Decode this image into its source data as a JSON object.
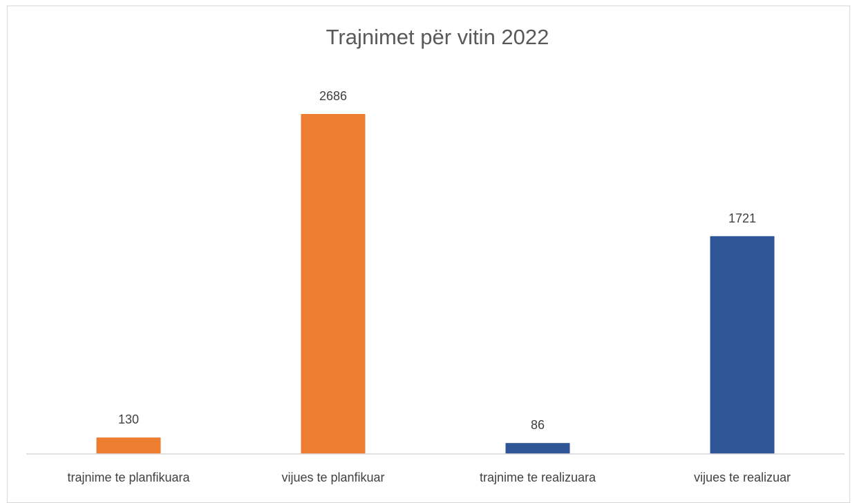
{
  "chart_data": {
    "type": "bar",
    "title": "Trajnimet për vitin 2022",
    "categories": [
      "trajnime te planfikuara",
      "vijues te planfikuar",
      "trajnime te realizuara",
      "vijues te realizuar"
    ],
    "values": [
      130,
      2686,
      86,
      1721
    ],
    "colors": [
      "#ED7D31",
      "#ED7D31",
      "#2F5597",
      "#2F5597"
    ],
    "xlabel": "",
    "ylabel": "",
    "ylim": [
      0,
      2686
    ],
    "grid": false,
    "legend": "none"
  },
  "colors": {
    "axis": "#d9d9d9",
    "frame": "#d9d9d9"
  }
}
